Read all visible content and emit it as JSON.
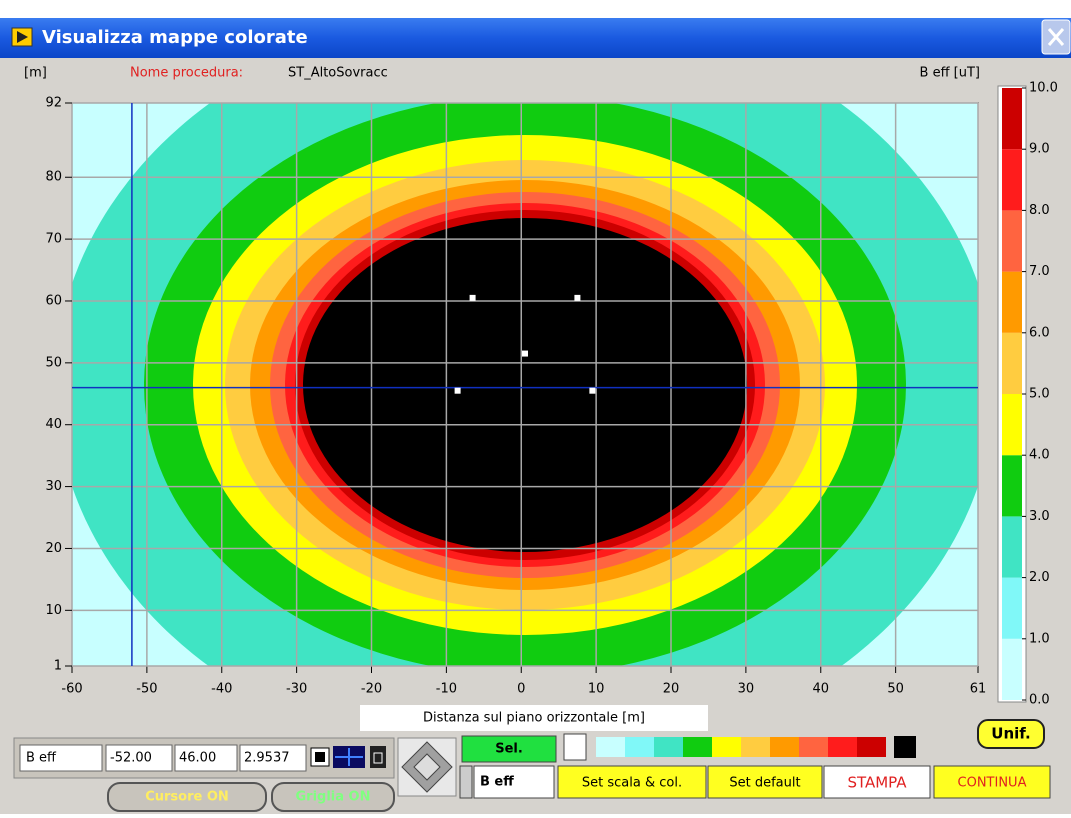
{
  "window": {
    "title": "Visualizza mappe colorate"
  },
  "header": {
    "unit_y": "[m]",
    "procedure_label": "Nome procedura:",
    "procedure_name": "ST_AltoSovracc",
    "scale_label": "B eff [uT]"
  },
  "plot": {
    "xlim": [
      -60,
      61
    ],
    "ylim": [
      1,
      92
    ],
    "xticks": [
      -60,
      -50,
      -40,
      -30,
      -20,
      -10,
      0,
      10,
      20,
      30,
      40,
      50,
      61
    ],
    "yticks": [
      1,
      10,
      20,
      30,
      40,
      50,
      60,
      70,
      80,
      92
    ],
    "grid": true,
    "x_label": "Distanza sul piano orizzontale [m]",
    "cursor": {
      "x": -52,
      "y": 46
    },
    "sources": {
      "x": [
        -6.5,
        7.5,
        0.5,
        -8.5,
        9.5
      ],
      "y": [
        60.5,
        60.5,
        51.5,
        45.5,
        45.5
      ]
    }
  },
  "colorbar": {
    "lim": [
      0,
      10
    ],
    "ticks": [
      {
        "value": 0,
        "label": "0.0"
      },
      {
        "value": 1,
        "label": "1.0"
      },
      {
        "value": 2,
        "label": "2.0"
      },
      {
        "value": 3,
        "label": "3.0"
      },
      {
        "value": 4,
        "label": "4.0"
      },
      {
        "value": 5,
        "label": "5.0"
      },
      {
        "value": 6,
        "label": "6.0"
      },
      {
        "value": 7,
        "label": "7.0"
      },
      {
        "value": 8,
        "label": "8.0"
      },
      {
        "value": 9,
        "label": "9.0"
      },
      {
        "value": 10,
        "label": "10.0"
      }
    ],
    "colors": [
      "#c8ffff",
      "#80f8f8",
      "#40e4c4",
      "#10cc10",
      "#ffff00",
      "#ffcc40",
      "#ff9a00",
      "#ff6440",
      "#ff1c1c",
      "#cc0000"
    ],
    "over_color": "#000000"
  },
  "readout": {
    "quantity": "B eff",
    "x": "-52.00",
    "y": "46.00",
    "value": "2.9537"
  },
  "buttons": {
    "cursor": "Cursore ON",
    "grid": "Griglia ON",
    "sel": "Sel.",
    "quantity": "B eff",
    "set_scale": "Set scala & col.",
    "set_default": "Set default",
    "print": "STAMPA",
    "continue": "CONTINUA",
    "uniform": "Unif."
  }
}
